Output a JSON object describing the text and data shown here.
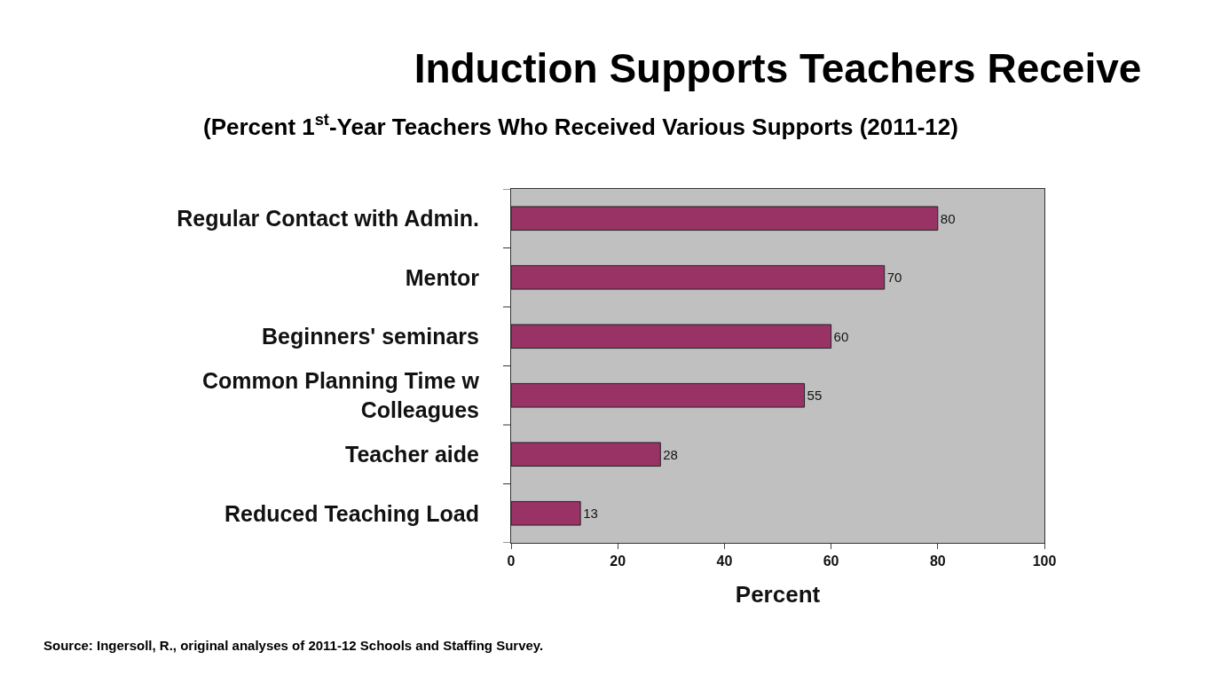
{
  "chart_data": {
    "type": "bar",
    "orientation": "horizontal",
    "title": "Induction Supports Teachers Receive",
    "subtitle": "(Percent 1$^{st}$-Year Teachers Who Received Various Supports (2011-12)",
    "xlabel": "Percent",
    "categories": [
      "Regular Contact with Admin.",
      "Mentor",
      "Beginners' seminars",
      "Common Planning Time w Colleagues",
      "Teacher aide",
      "Reduced Teaching Load"
    ],
    "values": [
      80,
      70,
      60,
      55,
      28,
      13
    ],
    "color": "#993366",
    "xlim": [
      0,
      100
    ],
    "xticks": [
      0,
      20,
      40,
      60,
      80,
      100
    ],
    "grid": false,
    "legend": false,
    "data_labels": true,
    "annotations": [
      "Source: Ingersoll, R., original analyses of 2011-12 Schools and Staffing Survey."
    ]
  }
}
